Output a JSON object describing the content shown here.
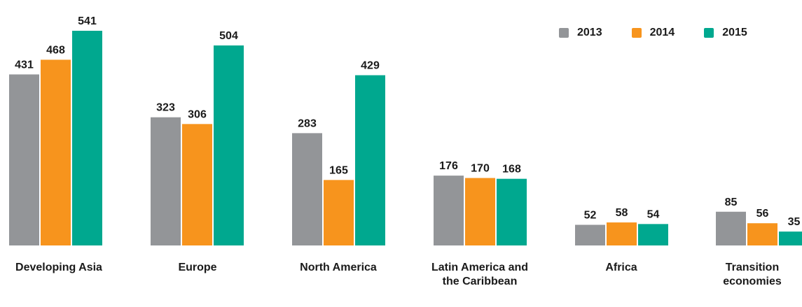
{
  "chart_data": {
    "type": "bar",
    "categories": [
      [
        "Developing Asia"
      ],
      [
        "Europe"
      ],
      [
        "North America"
      ],
      [
        "Latin America and",
        "the Caribbean"
      ],
      [
        "Africa"
      ],
      [
        "Transition",
        "economies"
      ]
    ],
    "series": [
      {
        "name": "2013",
        "color": "#939598",
        "values": [
          431,
          323,
          283,
          176,
          52,
          85
        ]
      },
      {
        "name": "2014",
        "color": "#f7941d",
        "values": [
          468,
          306,
          165,
          170,
          58,
          56
        ]
      },
      {
        "name": "2015",
        "color": "#00a88f",
        "values": [
          541,
          504,
          429,
          168,
          54,
          35
        ]
      }
    ],
    "ylim": [
      0,
      541
    ],
    "grid": false,
    "legend_position": "top-right",
    "data_labels": true
  }
}
